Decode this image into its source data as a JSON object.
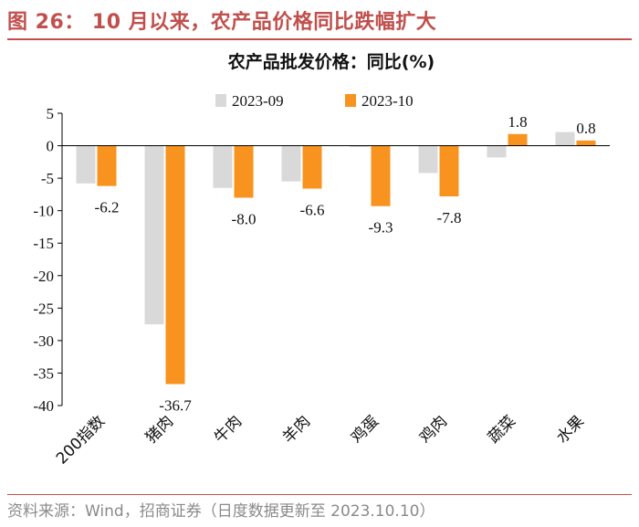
{
  "figure_title": "图 26：  10 月以来，农产品价格同比跌幅扩大",
  "source": "资料来源：Wind，招商证券（日度数据更新至 2023.10.10）",
  "colors": {
    "accent": "#c0504d",
    "series_2023_09": "#d9d9d9",
    "series_2023_10": "#f7931e"
  },
  "chart_data": {
    "type": "bar",
    "title": "农产品批发价格：同比(%)",
    "categories": [
      "200指数",
      "猪肉",
      "牛肉",
      "羊肉",
      "鸡蛋",
      "鸡肉",
      "蔬菜",
      "水果"
    ],
    "series": [
      {
        "name": "2023-09",
        "values": [
          -5.8,
          -27.5,
          -6.5,
          -5.5,
          -0.2,
          -4.2,
          -1.8,
          2.1
        ]
      },
      {
        "name": "2023-10",
        "values": [
          -6.2,
          -36.7,
          -8.0,
          -6.6,
          -9.3,
          -7.8,
          1.8,
          0.8
        ]
      }
    ],
    "data_labels": [
      "-6.2",
      "-36.7",
      "-8.0",
      "-6.6",
      "-9.3",
      "-7.8",
      "1.8",
      "0.8"
    ],
    "yticks": [
      "5",
      "0",
      "-5",
      "-10",
      "-15",
      "-20",
      "-25",
      "-30",
      "-35",
      "-40"
    ],
    "ylim": [
      -40,
      5
    ],
    "xlabel": "",
    "ylabel": "",
    "legend": "top-left"
  }
}
